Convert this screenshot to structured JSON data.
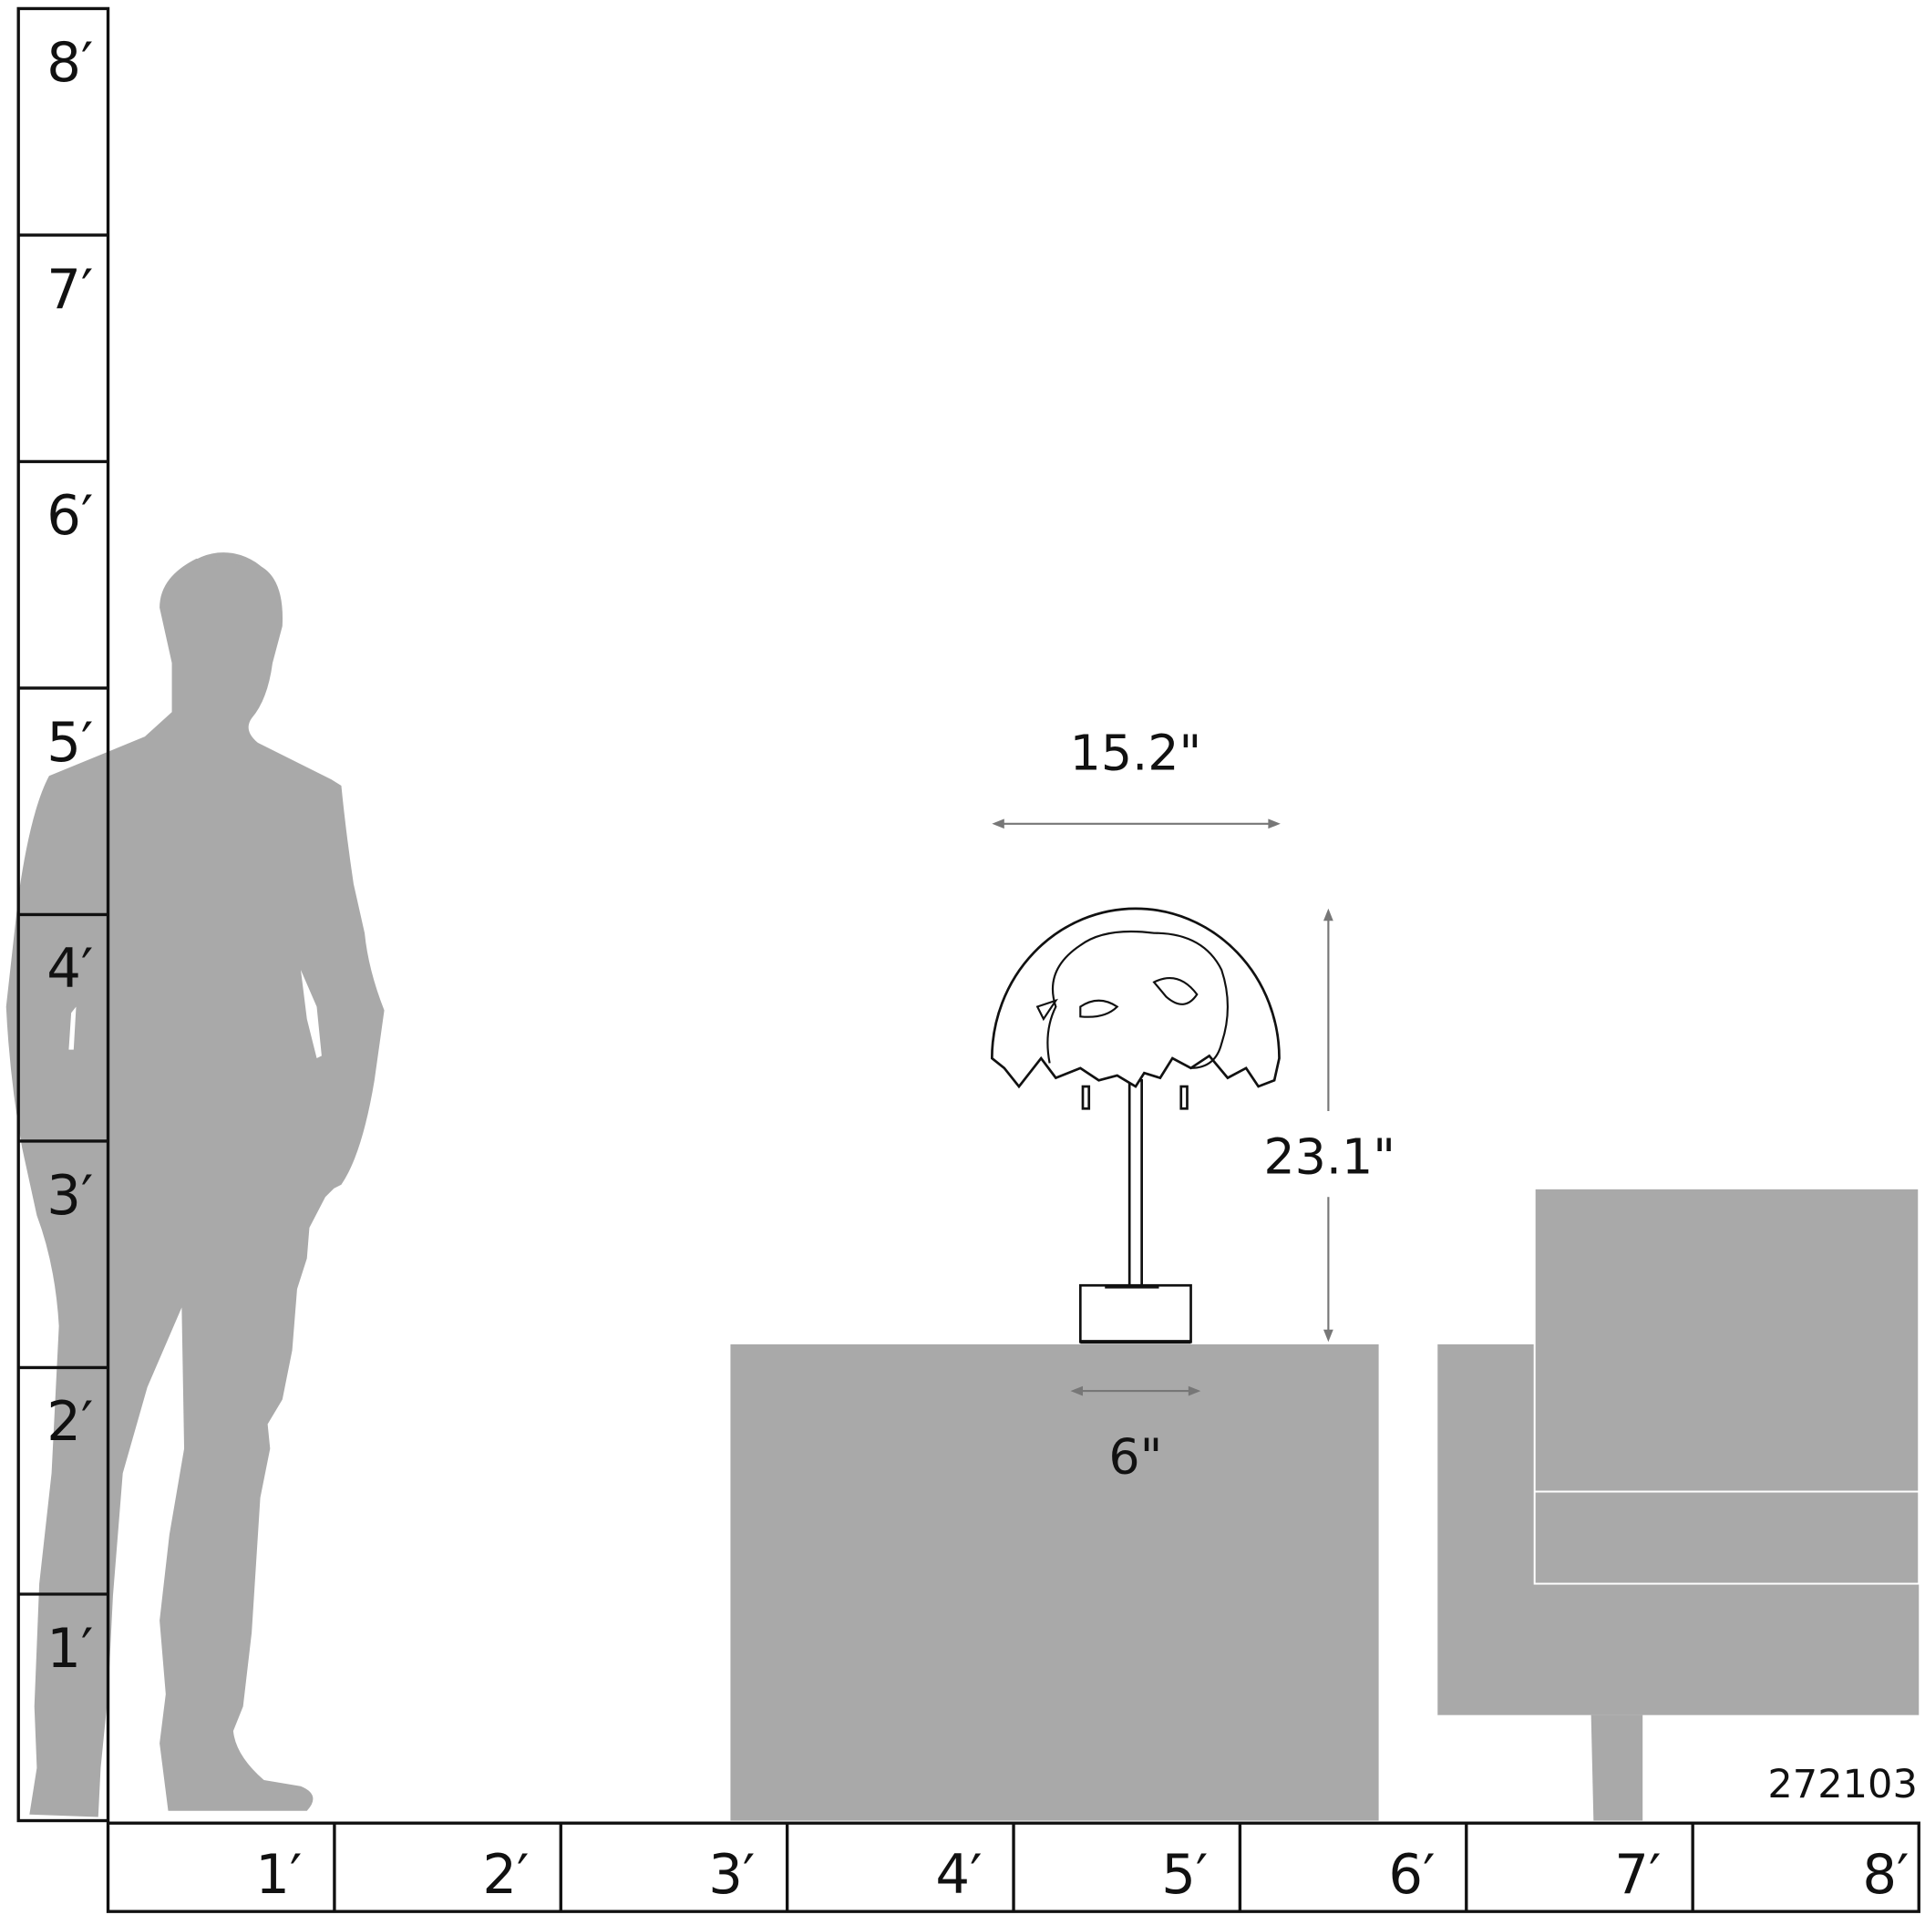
{
  "vertical_ruler": {
    "labels": [
      "8′",
      "7′",
      "6′",
      "5′",
      "4′",
      "3′",
      "2′",
      "1′"
    ]
  },
  "horizontal_ruler": {
    "labels": [
      "1′",
      "2′",
      "3′",
      "4′",
      "5′",
      "6′",
      "7′",
      "8′"
    ]
  },
  "dimensions": {
    "shade_width": "15.2\"",
    "overall_height": "23.1\"",
    "base_width": "6\""
  },
  "product_code": "272103",
  "colors": {
    "silhouette": "#a9a9a9",
    "lines": "#111111",
    "dimension_arrows": "#777777"
  }
}
